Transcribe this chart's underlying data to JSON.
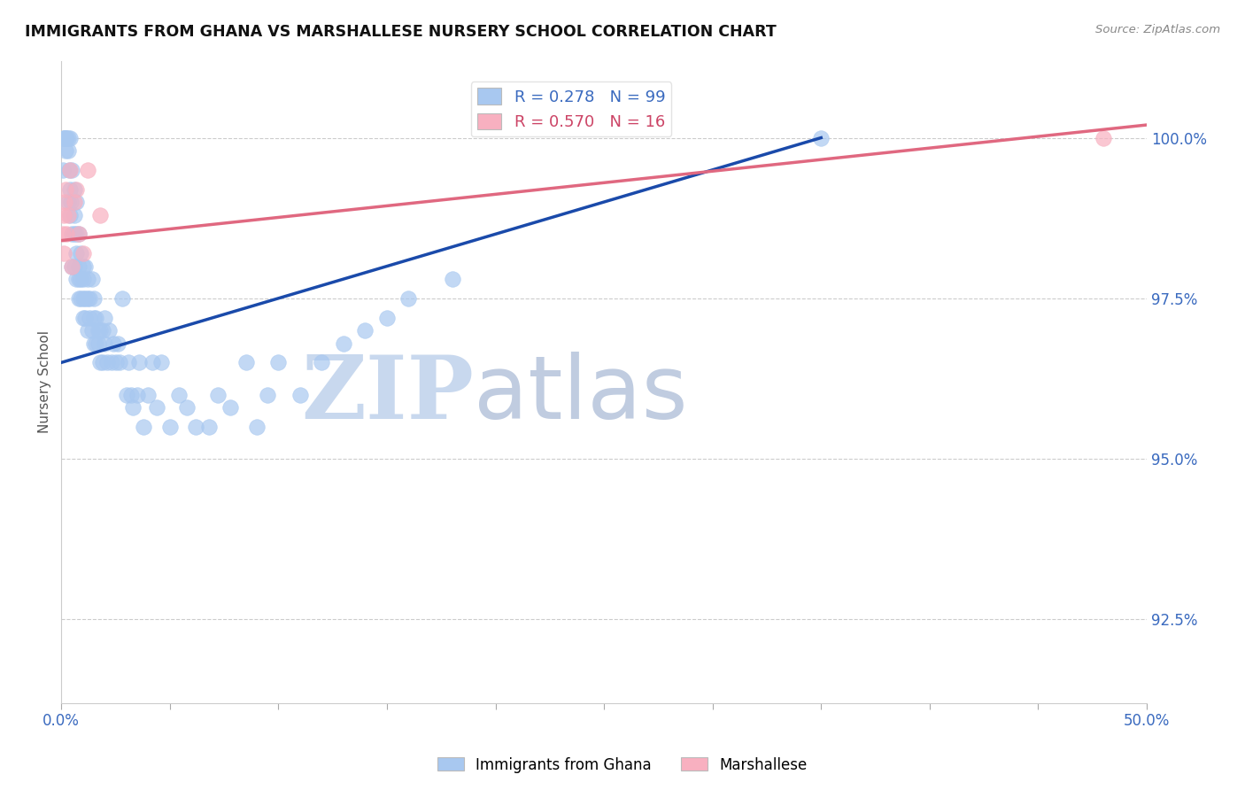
{
  "title": "IMMIGRANTS FROM GHANA VS MARSHALLESE NURSERY SCHOOL CORRELATION CHART",
  "source": "Source: ZipAtlas.com",
  "ylabel": "Nursery School",
  "yticks": [
    92.5,
    95.0,
    97.5,
    100.0
  ],
  "ytick_labels": [
    "92.5%",
    "95.0%",
    "97.5%",
    "100.0%"
  ],
  "xlim": [
    0.0,
    0.5
  ],
  "ylim": [
    91.2,
    101.2
  ],
  "ghana_R": 0.278,
  "ghana_N": 99,
  "marsh_R": 0.57,
  "marsh_N": 16,
  "ghana_color": "#a8c8f0",
  "marsh_color": "#f8b0c0",
  "ghana_line_color": "#1a4aaa",
  "marsh_line_color": "#e06880",
  "ghana_x": [
    0.0008,
    0.001,
    0.0012,
    0.0015,
    0.002,
    0.002,
    0.002,
    0.0025,
    0.003,
    0.003,
    0.003,
    0.0035,
    0.004,
    0.004,
    0.004,
    0.0045,
    0.005,
    0.005,
    0.005,
    0.006,
    0.006,
    0.006,
    0.006,
    0.007,
    0.007,
    0.007,
    0.007,
    0.008,
    0.008,
    0.008,
    0.008,
    0.009,
    0.009,
    0.009,
    0.01,
    0.01,
    0.01,
    0.01,
    0.011,
    0.011,
    0.011,
    0.012,
    0.012,
    0.012,
    0.013,
    0.013,
    0.014,
    0.014,
    0.015,
    0.015,
    0.015,
    0.016,
    0.016,
    0.017,
    0.017,
    0.018,
    0.018,
    0.019,
    0.019,
    0.02,
    0.02,
    0.021,
    0.022,
    0.023,
    0.024,
    0.025,
    0.026,
    0.027,
    0.028,
    0.03,
    0.031,
    0.032,
    0.033,
    0.035,
    0.036,
    0.038,
    0.04,
    0.042,
    0.044,
    0.046,
    0.05,
    0.054,
    0.058,
    0.062,
    0.068,
    0.072,
    0.078,
    0.085,
    0.09,
    0.095,
    0.1,
    0.11,
    0.12,
    0.13,
    0.14,
    0.15,
    0.16,
    0.18,
    0.35
  ],
  "ghana_y": [
    99.5,
    100.0,
    100.0,
    100.0,
    99.8,
    100.0,
    100.0,
    100.0,
    99.8,
    100.0,
    99.0,
    99.5,
    100.0,
    99.2,
    98.8,
    99.0,
    99.5,
    98.5,
    98.0,
    99.2,
    98.8,
    98.5,
    98.0,
    99.0,
    98.5,
    98.2,
    97.8,
    98.5,
    98.0,
    97.8,
    97.5,
    98.2,
    97.8,
    97.5,
    98.0,
    97.8,
    97.5,
    97.2,
    98.0,
    97.5,
    97.2,
    97.8,
    97.5,
    97.0,
    97.5,
    97.2,
    97.8,
    97.0,
    97.5,
    97.2,
    96.8,
    97.2,
    96.8,
    97.0,
    96.8,
    97.0,
    96.5,
    97.0,
    96.5,
    97.2,
    96.8,
    96.5,
    97.0,
    96.5,
    96.8,
    96.5,
    96.8,
    96.5,
    97.5,
    96.0,
    96.5,
    96.0,
    95.8,
    96.0,
    96.5,
    95.5,
    96.0,
    96.5,
    95.8,
    96.5,
    95.5,
    96.0,
    95.8,
    95.5,
    95.5,
    96.0,
    95.8,
    96.5,
    95.5,
    96.0,
    96.5,
    96.0,
    96.5,
    96.8,
    97.0,
    97.2,
    97.5,
    97.8,
    100.0
  ],
  "marsh_x": [
    0.0008,
    0.001,
    0.0012,
    0.0015,
    0.002,
    0.0025,
    0.003,
    0.004,
    0.005,
    0.006,
    0.007,
    0.008,
    0.01,
    0.012,
    0.018,
    0.48
  ],
  "marsh_y": [
    98.5,
    98.2,
    98.8,
    99.0,
    99.2,
    98.5,
    98.8,
    99.5,
    98.0,
    99.0,
    99.2,
    98.5,
    98.2,
    99.5,
    98.8,
    100.0
  ],
  "background_color": "#ffffff",
  "grid_color": "#cccccc",
  "watermark_zip": "ZIP",
  "watermark_atlas": "atlas",
  "watermark_color_zip": "#c8d8ee",
  "watermark_color_atlas": "#c0cce0"
}
